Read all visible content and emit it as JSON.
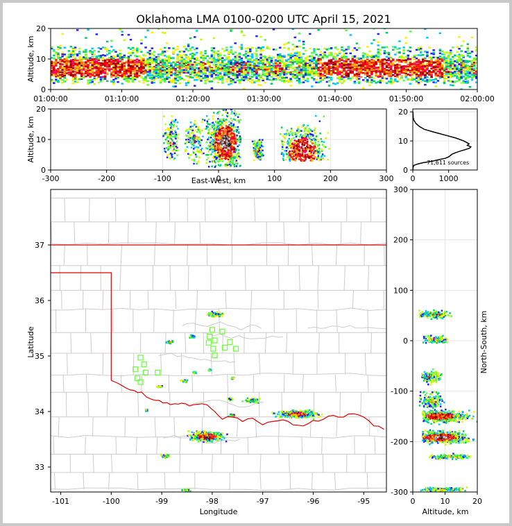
{
  "chart_data": [
    {
      "type": "heatmap",
      "panel": "altitude-time",
      "title": "Oklahoma LMA 0100-0200 UTC April 15, 2021",
      "ylabel": "Altitude, km",
      "ylim": [
        0,
        20
      ],
      "y_ticks": [
        "0",
        "10",
        "20"
      ],
      "x_ticks": [
        "01:00:00",
        "01:10:00",
        "01:20:00",
        "01:30:00",
        "01:40:00",
        "01:50:00",
        "02:00:00"
      ],
      "xlim": [
        "01:00:00",
        "02:00:00"
      ],
      "dense_altitude_band_km": [
        2,
        14
      ],
      "peak_density_altitude_km": 7
    },
    {
      "type": "heatmap",
      "panel": "altitude-east-west",
      "xlabel": "East-West, km",
      "ylabel": "Altitude, km",
      "xlim": [
        -300,
        300
      ],
      "ylim": [
        0,
        20
      ],
      "x_ticks": [
        "-300",
        "-200",
        "-100",
        "0",
        "100",
        "200",
        "300"
      ],
      "y_ticks": [
        "0",
        "10",
        "20"
      ],
      "grid": true,
      "clusters": [
        {
          "x_range": [
            -100,
            -70
          ],
          "alt_range": [
            2,
            18
          ],
          "intensity": "low"
        },
        {
          "x_range": [
            -60,
            -25
          ],
          "alt_range": [
            2,
            17
          ],
          "intensity": "low"
        },
        {
          "x_range": [
            -25,
            40
          ],
          "alt_range": [
            1,
            20
          ],
          "intensity": "peak",
          "peak_x": 12,
          "peak_alt": 9
        },
        {
          "x_range": [
            60,
            80
          ],
          "alt_range": [
            3,
            10
          ],
          "intensity": "low"
        },
        {
          "x_range": [
            110,
            200
          ],
          "alt_range": [
            3,
            20
          ],
          "intensity": "high",
          "peak_x": 150,
          "peak_alt": 6
        }
      ]
    },
    {
      "type": "line",
      "panel": "altitude-histogram",
      "annotation": "71,611 sources",
      "xlim": [
        0,
        1800
      ],
      "ylim": [
        0,
        21
      ],
      "x_ticks": [
        "0",
        "1000"
      ],
      "y_ticks": [
        "0",
        "10",
        "20"
      ],
      "x": [
        0,
        5,
        10,
        30,
        120,
        280,
        540,
        700,
        900,
        1000,
        1050,
        1100,
        1200,
        1320,
        1460,
        1580,
        1620,
        1520,
        1570,
        1420,
        1200,
        900,
        600,
        320,
        180,
        90,
        35,
        12,
        5
      ],
      "y": [
        0,
        0.5,
        1.0,
        1.6,
        2.0,
        2.5,
        3.0,
        3.5,
        4.0,
        4.5,
        5.0,
        5.5,
        6.0,
        6.5,
        7.0,
        7.5,
        8.0,
        8.5,
        9.0,
        10.0,
        11.0,
        12.0,
        13.0,
        14.0,
        15.0,
        16.0,
        17.0,
        18.0,
        20.0
      ]
    },
    {
      "type": "heatmap",
      "panel": "map",
      "xlabel": "Longitude",
      "ylabel": "Latitude",
      "xlim": [
        -101.2,
        -94.55
      ],
      "ylim": [
        32.55,
        38
      ],
      "x_ticks": [
        "-101",
        "-100",
        "-99",
        "-98",
        "-97",
        "-96",
        "-95"
      ],
      "y_ticks": [
        "33",
        "34",
        "35",
        "36",
        "37"
      ],
      "clusters": [
        {
          "lon": -98.1,
          "lat": 33.55,
          "w": 0.6,
          "h": 0.16,
          "intensity": "peak"
        },
        {
          "lon": -96.3,
          "lat": 33.95,
          "w": 0.7,
          "h": 0.13,
          "intensity": "high"
        },
        {
          "lon": -97.95,
          "lat": 35.75,
          "w": 0.3,
          "h": 0.08,
          "intensity": "low"
        },
        {
          "lon": -98.4,
          "lat": 35.35,
          "w": 0.15,
          "h": 0.06,
          "intensity": "low"
        },
        {
          "lon": -98.85,
          "lat": 35.25,
          "w": 0.12,
          "h": 0.05,
          "intensity": "low"
        },
        {
          "lon": -98.95,
          "lat": 33.2,
          "w": 0.22,
          "h": 0.06,
          "intensity": "low"
        },
        {
          "lon": -98.5,
          "lat": 32.58,
          "w": 0.15,
          "h": 0.05,
          "intensity": "low"
        },
        {
          "lon": -98.55,
          "lat": 34.55,
          "w": 0.12,
          "h": 0.06,
          "intensity": "low"
        },
        {
          "lon": -97.2,
          "lat": 34.2,
          "w": 0.3,
          "h": 0.08,
          "intensity": "low"
        },
        {
          "lon": -97.65,
          "lat": 34.22,
          "w": 0.1,
          "h": 0.04,
          "intensity": "low"
        },
        {
          "lon": -97.6,
          "lat": 33.93,
          "w": 0.12,
          "h": 0.05,
          "intensity": "low"
        },
        {
          "lon": -97.6,
          "lat": 34.6,
          "w": 0.05,
          "h": 0.03,
          "intensity": "low"
        },
        {
          "lon": -98.05,
          "lat": 34.75,
          "w": 0.06,
          "h": 0.03,
          "intensity": "low"
        },
        {
          "lon": -99.05,
          "lat": 34.45,
          "w": 0.1,
          "h": 0.03,
          "intensity": "low"
        },
        {
          "lon": -98.35,
          "lat": 34.7,
          "w": 0.08,
          "h": 0.04,
          "intensity": "low"
        },
        {
          "lon": -99.3,
          "lat": 34.02,
          "w": 0.03,
          "h": 0.03,
          "intensity": "low"
        }
      ],
      "stations": [
        {
          "lon": -98.0,
          "lat": 35.47
        },
        {
          "lon": -97.8,
          "lat": 35.44
        },
        {
          "lon": -98.05,
          "lat": 35.35
        },
        {
          "lon": -97.95,
          "lat": 35.28
        },
        {
          "lon": -98.07,
          "lat": 35.24
        },
        {
          "lon": -97.65,
          "lat": 35.25
        },
        {
          "lon": -97.75,
          "lat": 35.15
        },
        {
          "lon": -97.53,
          "lat": 35.13
        },
        {
          "lon": -97.98,
          "lat": 35.13
        },
        {
          "lon": -97.95,
          "lat": 35.01
        },
        {
          "lon": -99.42,
          "lat": 34.97
        },
        {
          "lon": -99.35,
          "lat": 34.85
        },
        {
          "lon": -99.52,
          "lat": 34.76
        },
        {
          "lon": -99.32,
          "lat": 34.7
        },
        {
          "lon": -99.08,
          "lat": 34.7
        },
        {
          "lon": -99.48,
          "lat": 34.6
        },
        {
          "lon": -99.42,
          "lat": 34.53
        }
      ],
      "state_line_color": "#e00000",
      "county_line_color": "#cccccc"
    },
    {
      "type": "heatmap",
      "panel": "north-south-altitude",
      "xlabel": "Altitude, km",
      "ylabel": "North-South, km",
      "xlim": [
        0,
        20
      ],
      "ylim": [
        -300,
        300
      ],
      "x_ticks": [
        "0",
        "10",
        "20"
      ],
      "y_ticks": [
        "-300",
        "-200",
        "-100",
        "0",
        "100",
        "200",
        "300"
      ],
      "grid": true,
      "clusters": [
        {
          "y_center": 52,
          "y_height": 16,
          "x_range": [
            2,
            12
          ],
          "intensity": "low"
        },
        {
          "y_center": 2,
          "y_height": 14,
          "x_range": [
            3,
            11
          ],
          "intensity": "low"
        },
        {
          "y_center": -72,
          "y_height": 25,
          "x_range": [
            2,
            9
          ],
          "intensity": "low"
        },
        {
          "y_center": -120,
          "y_height": 30,
          "x_range": [
            2,
            10
          ],
          "intensity": "low"
        },
        {
          "y_center": -150,
          "y_height": 22,
          "x_range": [
            3,
            20
          ],
          "intensity": "high"
        },
        {
          "y_center": -192,
          "y_height": 22,
          "x_range": [
            3,
            20
          ],
          "intensity": "peak"
        },
        {
          "y_center": -230,
          "y_height": 8,
          "x_range": [
            5,
            18
          ],
          "intensity": "low"
        },
        {
          "y_center": -295,
          "y_height": 8,
          "x_range": [
            2,
            17
          ],
          "intensity": "low"
        }
      ]
    }
  ],
  "map_regions": {
    "oklahoma_outline_color": "#e00000"
  }
}
